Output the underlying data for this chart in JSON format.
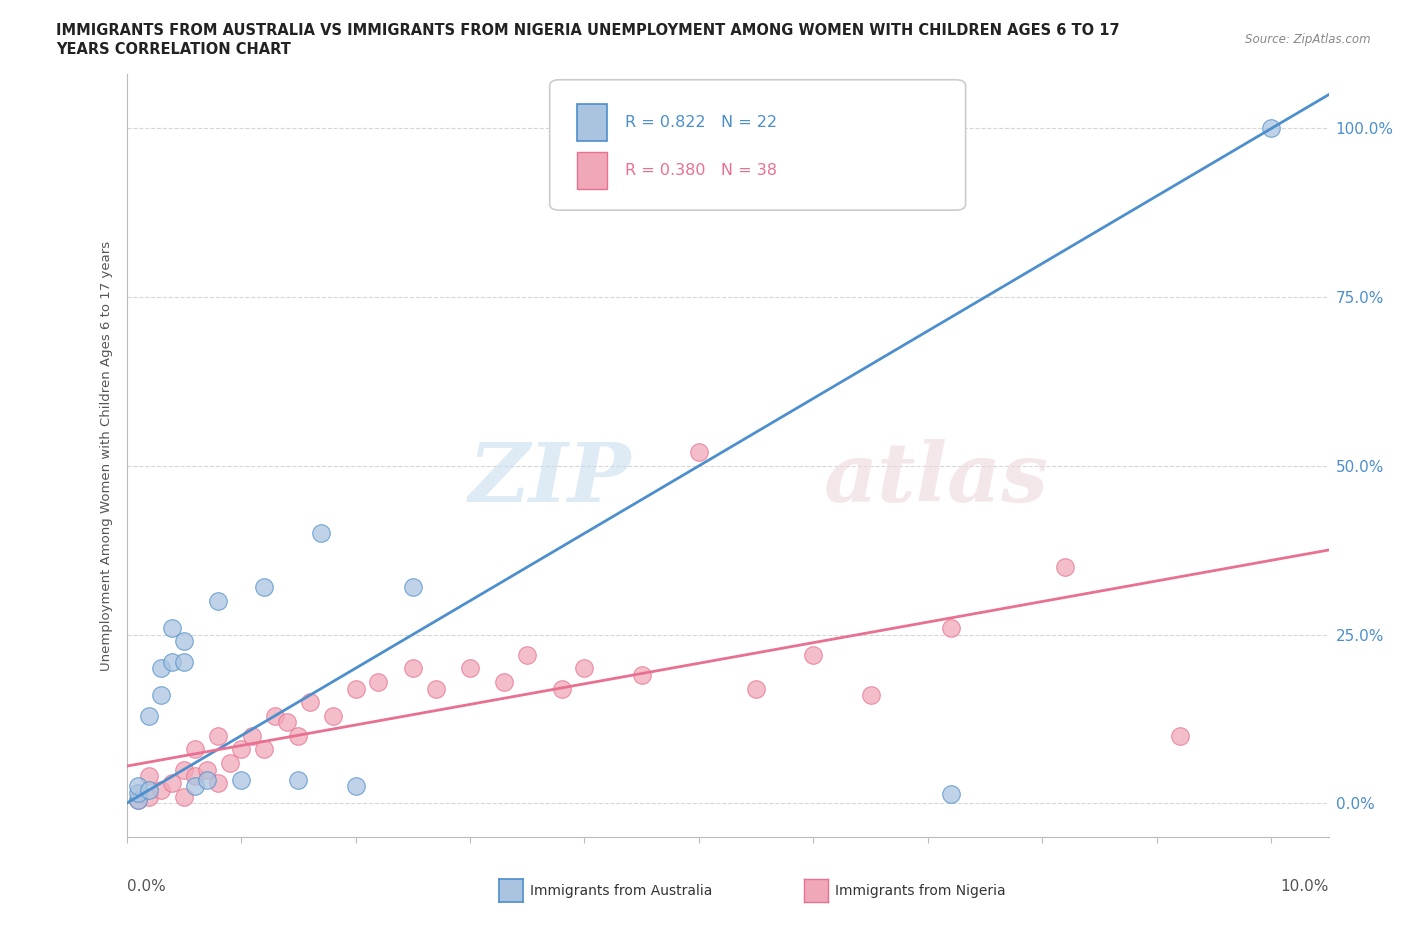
{
  "title_line1": "IMMIGRANTS FROM AUSTRALIA VS IMMIGRANTS FROM NIGERIA UNEMPLOYMENT AMONG WOMEN WITH CHILDREN AGES 6 TO 17",
  "title_line2": "YEARS CORRELATION CHART",
  "source": "Source: ZipAtlas.com",
  "ylabel": "Unemployment Among Women with Children Ages 6 to 17 years",
  "legend_australia_R": "0.822",
  "legend_australia_N": "22",
  "legend_nigeria_R": "0.380",
  "legend_nigeria_N": "38",
  "ytick_labels": [
    "100.0%",
    "75.0%",
    "50.0%",
    "25.0%",
    "0.0%"
  ],
  "ytick_values": [
    1.0,
    0.75,
    0.5,
    0.25,
    0.0
  ],
  "australia_color": "#aac4e0",
  "nigeria_color": "#f0a8b8",
  "line_australia_color": "#4d8fcc",
  "line_nigeria_color": "#e87090",
  "australia_x": [
    0.001,
    0.001,
    0.001,
    0.002,
    0.002,
    0.003,
    0.003,
    0.004,
    0.004,
    0.005,
    0.005,
    0.006,
    0.007,
    0.008,
    0.01,
    0.012,
    0.015,
    0.017,
    0.02,
    0.025,
    0.072,
    0.1
  ],
  "australia_y": [
    0.005,
    0.015,
    0.025,
    0.02,
    0.13,
    0.16,
    0.2,
    0.21,
    0.26,
    0.21,
    0.24,
    0.025,
    0.035,
    0.3,
    0.035,
    0.32,
    0.035,
    0.4,
    0.025,
    0.32,
    0.013,
    1.0
  ],
  "nigeria_x": [
    0.001,
    0.002,
    0.002,
    0.003,
    0.004,
    0.005,
    0.005,
    0.006,
    0.006,
    0.007,
    0.008,
    0.008,
    0.009,
    0.01,
    0.011,
    0.012,
    0.013,
    0.014,
    0.015,
    0.016,
    0.018,
    0.02,
    0.022,
    0.025,
    0.027,
    0.03,
    0.033,
    0.035,
    0.038,
    0.04,
    0.045,
    0.05,
    0.055,
    0.06,
    0.065,
    0.072,
    0.082,
    0.092
  ],
  "nigeria_y": [
    0.005,
    0.01,
    0.04,
    0.02,
    0.03,
    0.01,
    0.05,
    0.04,
    0.08,
    0.05,
    0.03,
    0.1,
    0.06,
    0.08,
    0.1,
    0.08,
    0.13,
    0.12,
    0.1,
    0.15,
    0.13,
    0.17,
    0.18,
    0.2,
    0.17,
    0.2,
    0.18,
    0.22,
    0.17,
    0.2,
    0.19,
    0.52,
    0.17,
    0.22,
    0.16,
    0.26,
    0.35,
    0.1
  ],
  "line_au_x0": 0.0,
  "line_au_y0": 0.0,
  "line_au_x1": 0.1,
  "line_au_y1": 1.0,
  "line_ng_x0": 0.0,
  "line_ng_y0": 0.055,
  "line_ng_x1": 0.1,
  "line_ng_y1": 0.36,
  "xlim": [
    0.0,
    0.105
  ],
  "ylim": [
    -0.05,
    1.08
  ]
}
